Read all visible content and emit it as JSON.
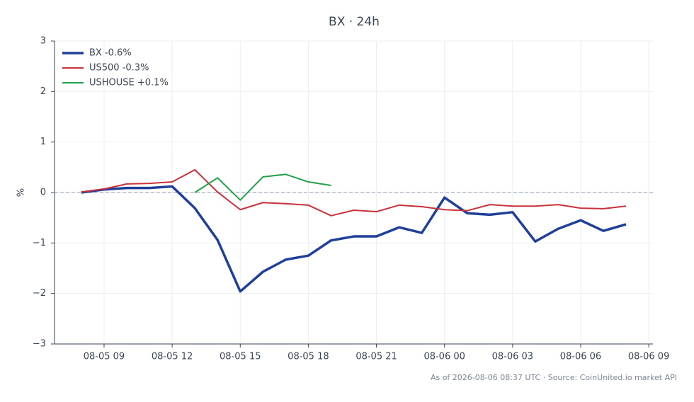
{
  "chart_data": {
    "type": "line",
    "title": "BX · 24h",
    "ylabel": "%",
    "footnote": "As of 2026-08-06 08:37 UTC · Source: CoinUnited.io market API",
    "x": [
      "08-05 08",
      "08-05 09",
      "08-05 10",
      "08-05 11",
      "08-05 12",
      "08-05 13",
      "08-05 14",
      "08-05 15",
      "08-05 16",
      "08-05 17",
      "08-05 18",
      "08-05 19",
      "08-05 20",
      "08-05 21",
      "08-05 22",
      "08-05 23",
      "08-06 00",
      "08-06 01",
      "08-06 02",
      "08-06 03",
      "08-06 04",
      "08-06 05",
      "08-06 06",
      "08-06 07",
      "08-06 08"
    ],
    "series": [
      {
        "name": "BX -0.6%",
        "color": "#1f3f99",
        "width": 3.5,
        "values": [
          0.0,
          0.06,
          0.09,
          0.09,
          0.12,
          -0.31,
          -0.94,
          -1.96,
          -1.57,
          -1.33,
          -1.25,
          -0.95,
          -0.87,
          -0.87,
          -0.69,
          -0.8,
          -0.1,
          -0.41,
          -0.44,
          -0.39,
          -0.97,
          -0.72,
          -0.55,
          -0.76,
          -0.63
        ]
      },
      {
        "name": "US500 -0.3%",
        "color": "#c8323a",
        "width": 2,
        "values": [
          0.01,
          0.07,
          0.17,
          0.18,
          0.21,
          0.45,
          0.01,
          -0.34,
          -0.2,
          -0.22,
          -0.25,
          -0.46,
          -0.35,
          -0.38,
          -0.25,
          -0.28,
          -0.34,
          -0.36,
          -0.24,
          -0.27,
          -0.27,
          -0.24,
          -0.31,
          -0.32,
          -0.27
        ]
      },
      {
        "name": "USHOUSE +0.1%",
        "color": "#23a04a",
        "width": 2,
        "values": [
          null,
          null,
          null,
          null,
          null,
          0.0,
          0.29,
          -0.15,
          0.31,
          0.36,
          0.21,
          0.14,
          null,
          null,
          null,
          null,
          null,
          null,
          null,
          null,
          null,
          null,
          null,
          null,
          null
        ]
      }
    ],
    "xlim": [
      "08-05 06:49",
      "08-06 09:11"
    ],
    "xticks": [
      "08-05 09",
      "08-05 12",
      "08-05 15",
      "08-05 18",
      "08-05 21",
      "08-06 00",
      "08-06 03",
      "08-06 06",
      "08-06 09"
    ],
    "ylim": [
      -3,
      3
    ],
    "yticks": [
      {
        "value": -3,
        "label": "−3"
      },
      {
        "value": -2,
        "label": "−2"
      },
      {
        "value": -1,
        "label": "−1"
      },
      0,
      1,
      2,
      3
    ],
    "grid": true,
    "zero_line": true,
    "legend": "top-left"
  }
}
